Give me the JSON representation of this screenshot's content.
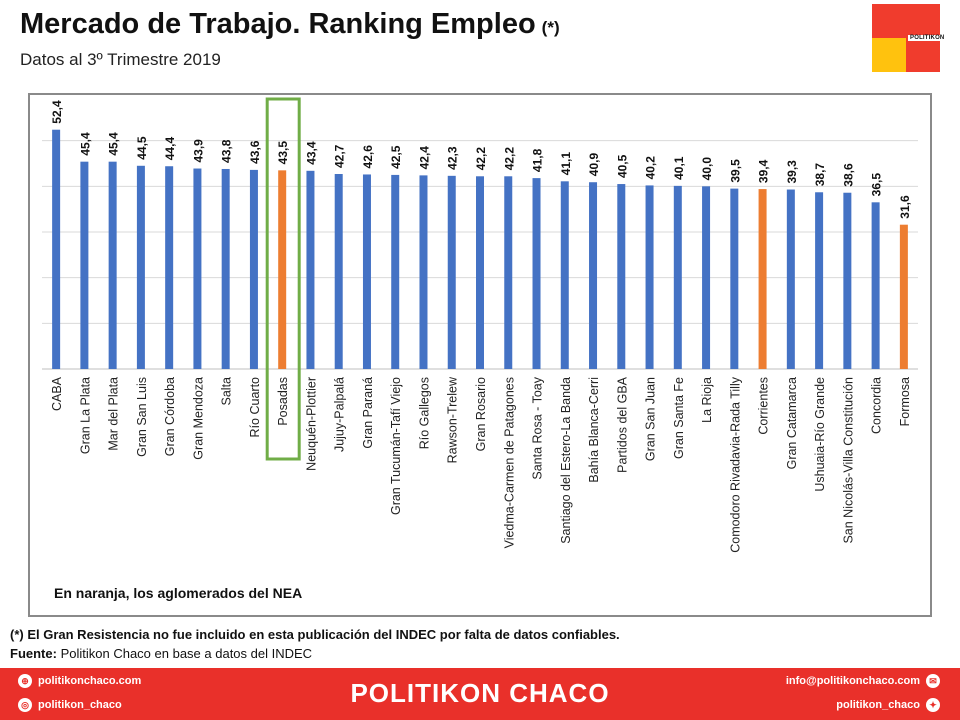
{
  "header": {
    "title": "Mercado de Trabajo. Ranking Empleo",
    "title_note": "(*)",
    "subtitle": "Datos al 3º Trimestre 2019"
  },
  "logo": {
    "brand": "POLITIKON",
    "colors": [
      "#f03c2d",
      "#ffc20e"
    ]
  },
  "chart_data": {
    "type": "bar",
    "categories": [
      "CABA",
      "Gran La Plata",
      "Mar del Plata",
      "Gran San Luis",
      "Gran Córdoba",
      "Gran Mendoza",
      "Salta",
      "Río Cuarto",
      "Posadas",
      "Neuquén-Plottier",
      "Jujuy-Palpalá",
      "Gran Paraná",
      "Gran Tucumán-Tafí Viejo",
      "Río Gallegos",
      "Rawson-Trelew",
      "Gran Rosario",
      "Viedma-Carmen de Patagones",
      "Santa Rosa - Toay",
      "Santiago del Estero-La Banda",
      "Bahía Blanca-Cerri",
      "Partidos del GBA",
      "Gran San Juan",
      "Gran Santa Fe",
      "La Rioja",
      "Comodoro Rivadavia-Rada Tilly",
      "Corrientes",
      "Gran Catamarca",
      "Ushuaia-Río Grande",
      "San Nicolás-Villa Constitución",
      "Concordia",
      "Formosa"
    ],
    "values": [
      52.4,
      45.4,
      45.4,
      44.5,
      44.4,
      43.9,
      43.8,
      43.6,
      43.5,
      43.4,
      42.7,
      42.6,
      42.5,
      42.4,
      42.3,
      42.2,
      42.2,
      41.8,
      41.1,
      40.9,
      40.5,
      40.2,
      40.1,
      40.0,
      39.5,
      39.4,
      39.3,
      38.7,
      38.6,
      36.5,
      31.6
    ],
    "value_labels": [
      "52,4",
      "45,4",
      "45,4",
      "44,5",
      "44,4",
      "43,9",
      "43,8",
      "43,6",
      "43,5",
      "43,4",
      "42,7",
      "42,6",
      "42,5",
      "42,4",
      "42,3",
      "42,2",
      "42,2",
      "41,8",
      "41,1",
      "40,9",
      "40,5",
      "40,2",
      "40,1",
      "40,0",
      "39,5",
      "39,4",
      "39,3",
      "38,7",
      "38,6",
      "36,5",
      "31,6"
    ],
    "highlight_nea": [
      "Posadas",
      "Corrientes",
      "Formosa"
    ],
    "boxed_category": "Posadas",
    "ylim": [
      0,
      60
    ],
    "grid": true,
    "colors": {
      "default": "#4472c4",
      "nea": "#ed7d31",
      "box": "#70ad47"
    },
    "annotation": "En naranja, los aglomerados del NEA"
  },
  "notes": {
    "footnote": "(*) El Gran Resistencia no fue incluido en esta publicación del INDEC por falta de datos confiables.",
    "source_label": "Fuente:",
    "source_text": "Politikon Chaco en base a datos del INDEC"
  },
  "footer": {
    "website": "politikonchaco.com",
    "instagram": "politikon_chaco",
    "brand": "POLITIKON CHACO",
    "email": "info@politikonchaco.com",
    "twitter": "politikon_chaco",
    "icons": [
      "globe-icon",
      "instagram-icon",
      "mail-icon",
      "twitter-icon"
    ]
  }
}
